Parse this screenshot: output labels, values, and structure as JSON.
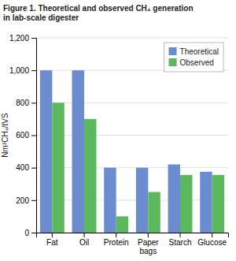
{
  "chart_data": {
    "type": "bar",
    "title": "Figure 1. Theoretical and observed CH₄ generation\nin lab-scale digester",
    "categories": [
      "Fat",
      "Oil",
      "Protein",
      "Paper\nbags",
      "Starch",
      "Glucose"
    ],
    "series": [
      {
        "name": "Theoretical",
        "color": "#6b8cce",
        "values": [
          1000,
          1000,
          400,
          400,
          420,
          375
        ]
      },
      {
        "name": "Observed",
        "color": "#5cb85c",
        "values": [
          800,
          700,
          100,
          250,
          355,
          355
        ]
      }
    ],
    "ylabel": "Nm³CH₄/tVS",
    "ylim": [
      0,
      1200
    ],
    "yticks": [
      0,
      200,
      400,
      600,
      800,
      {
        "value": 1000,
        "label": "1,000"
      },
      {
        "value": 1200,
        "label": "1,200"
      }
    ],
    "grid": true,
    "legend": "upper right"
  }
}
